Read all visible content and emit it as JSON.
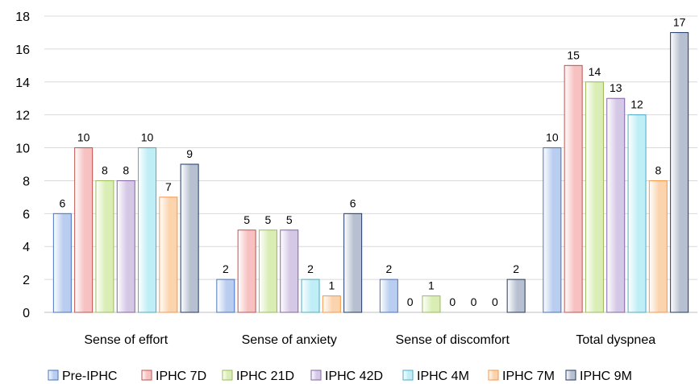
{
  "chart_data": {
    "type": "bar",
    "title": "",
    "xlabel": "",
    "ylabel": "",
    "ylim": [
      0,
      18
    ],
    "yticks": [
      0,
      2,
      4,
      6,
      8,
      10,
      12,
      14,
      16,
      18
    ],
    "grid": "horizontal",
    "legend_position": "bottom",
    "categories": [
      "Sense of effort",
      "Sense of anxiety",
      "Sense of discomfort",
      "Total dyspnea"
    ],
    "series": [
      {
        "name": "Pre-IPHC",
        "color": "#b9cdf0",
        "border": "#4472c4",
        "values": [
          6,
          2,
          2,
          10
        ]
      },
      {
        "name": "IPHC 7D",
        "color": "#f7c1c1",
        "border": "#c0504d",
        "values": [
          10,
          5,
          0,
          15
        ]
      },
      {
        "name": "IPHC 21D",
        "color": "#d9edb4",
        "border": "#9bbb59",
        "values": [
          8,
          5,
          1,
          14
        ]
      },
      {
        "name": "IPHC 42D",
        "color": "#d5c8e6",
        "border": "#8064a2",
        "values": [
          8,
          5,
          0,
          13
        ]
      },
      {
        "name": "IPHC 4M",
        "color": "#bfeef6",
        "border": "#4bacc6",
        "values": [
          10,
          2,
          0,
          12
        ]
      },
      {
        "name": "IPHC 7M",
        "color": "#fbd3ad",
        "border": "#f79646",
        "values": [
          7,
          1,
          0,
          8
        ]
      },
      {
        "name": "IPHC 9M",
        "color": "#b7c0d0",
        "border": "#1f3864",
        "values": [
          9,
          6,
          2,
          17
        ]
      }
    ]
  }
}
